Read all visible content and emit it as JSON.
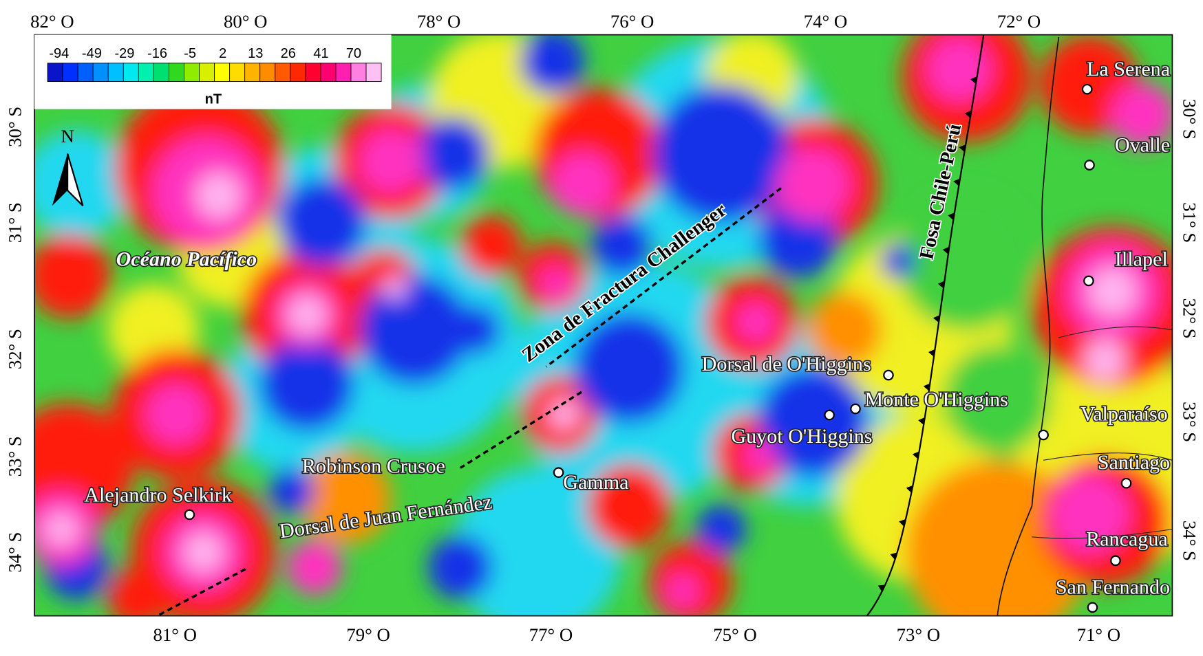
{
  "colorbar": {
    "labels": [
      -94,
      -49,
      -29,
      -16,
      -5,
      2,
      13,
      26,
      41,
      70
    ],
    "unit": "nT",
    "colors": [
      "#0a14c8",
      "#0030ff",
      "#0060ff",
      "#0090ff",
      "#00c0ff",
      "#00e8f0",
      "#00f0b0",
      "#00e070",
      "#30d820",
      "#90ec00",
      "#d8f000",
      "#ffff00",
      "#ffdc00",
      "#ffb400",
      "#ff8c00",
      "#ff5a00",
      "#ff2800",
      "#ff0030",
      "#ff0070",
      "#ff20b0",
      "#ff80e0",
      "#ffc0f4"
    ]
  },
  "axes": {
    "top": [
      "82° O",
      "80° O",
      "78° O",
      "76° O",
      "74° O",
      "72° O"
    ],
    "bottom": [
      "81° O",
      "79° O",
      "77° O",
      "75° O",
      "73° O",
      "71° O"
    ],
    "left": [
      "30° S",
      "31° S",
      "32° S",
      "33° S",
      "34° S"
    ],
    "right": [
      "30° S",
      "31° S",
      "32° S",
      "33° S",
      "34° S"
    ]
  },
  "labels": {
    "north": "N",
    "ocean": "Océano Pacífico",
    "fracture_zone": "Zona de Fractura Challenger",
    "trench": "Fosa Chile-Perú",
    "ridge": "Dorsal de Juan Fernández"
  },
  "places": [
    "La Serena",
    "Ovalle",
    "Illapel",
    "Valparaíso",
    "Santiago",
    "Rancagua",
    "San Fernando",
    "Dorsal de O'Higgins",
    "Monte O'Higgins",
    "Guyot O'Higgins",
    "Gamma",
    "Robinson Crusoe",
    "Alejandro Selkirk"
  ]
}
